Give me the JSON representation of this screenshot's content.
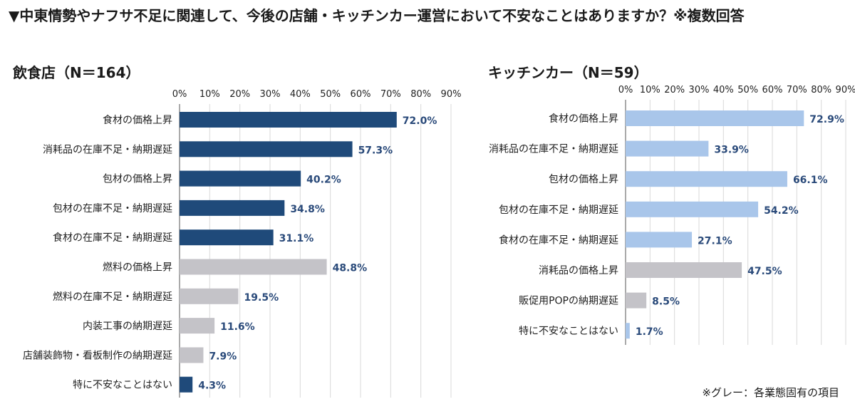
{
  "title": "▼中東情勢やナフサ不足に関連して、今後の店舗・キッチンカー運営において不安なことはありますか？※複数回答",
  "note": "※グレー：各業態固有の項目",
  "colors": {
    "left_common": "#1f4a7a",
    "right_common": "#a9c6ea",
    "specific": "#c4c3c8",
    "value_label": "#2a4a7a",
    "grid": "#d9d9d9",
    "axis": "#555555"
  },
  "chart_data": [
    {
      "type": "bar",
      "orientation": "horizontal",
      "title": "飲食店（N＝164）",
      "xlim": [
        0,
        90
      ],
      "x_ticks": [
        "0%",
        "10%",
        "20%",
        "30%",
        "40%",
        "50%",
        "60%",
        "70%",
        "80%",
        "90%"
      ],
      "categories": [
        "食材の価格上昇",
        "消耗品の在庫不足・納期遅延",
        "包材の価格上昇",
        "包材の在庫不足・納期遅延",
        "食材の在庫不足・納期遅延",
        "燃料の価格上昇",
        "燃料の在庫不足・納期遅延",
        "内装工事の納期遅延",
        "店舗装飾物・看板制作の納期遅延",
        "特に不安なことはない"
      ],
      "values": [
        72.0,
        57.3,
        40.2,
        34.8,
        31.1,
        48.8,
        19.5,
        11.6,
        7.9,
        4.3
      ],
      "value_labels": [
        "72.0%",
        "57.3%",
        "40.2%",
        "34.8%",
        "31.1%",
        "48.8%",
        "19.5%",
        "11.6%",
        "7.9%",
        "4.3%"
      ],
      "specific": [
        false,
        false,
        false,
        false,
        false,
        true,
        true,
        true,
        true,
        false
      ],
      "grid": true
    },
    {
      "type": "bar",
      "orientation": "horizontal",
      "title": "キッチンカー（N＝59）",
      "xlim": [
        0,
        90
      ],
      "x_ticks": [
        "0%",
        "10%",
        "20%",
        "30%",
        "40%",
        "50%",
        "60%",
        "70%",
        "80%",
        "90%"
      ],
      "categories": [
        "食材の価格上昇",
        "消耗品の在庫不足・納期遅延",
        "包材の価格上昇",
        "包材の在庫不足・納期遅延",
        "食材の在庫不足・納期遅延",
        "消耗品の価格上昇",
        "販促用POPの納期遅延",
        "特に不安なことはない"
      ],
      "values": [
        72.9,
        33.9,
        66.1,
        54.2,
        27.1,
        47.5,
        8.5,
        1.7
      ],
      "value_labels": [
        "72.9%",
        "33.9%",
        "66.1%",
        "54.2%",
        "27.1%",
        "47.5%",
        "8.5%",
        "1.7%"
      ],
      "specific": [
        false,
        false,
        false,
        false,
        false,
        true,
        true,
        false
      ],
      "grid": true
    }
  ]
}
